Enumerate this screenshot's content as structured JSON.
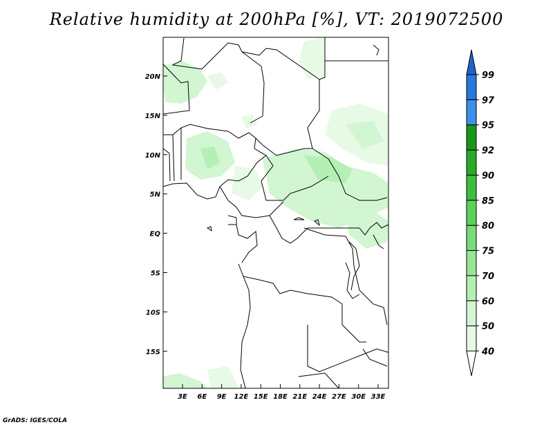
{
  "title": "Relative humidity at 200hPa [%], VT: 2019072500",
  "footer": "GrADS: IGES/COLA",
  "map": {
    "lat_labels": [
      "20N",
      "15N",
      "10N",
      "5N",
      "EQ",
      "5S",
      "10S",
      "15S"
    ],
    "lon_labels": [
      "3E",
      "6E",
      "9E",
      "12E",
      "15E",
      "18E",
      "21E",
      "24E",
      "27E",
      "30E",
      "33E"
    ]
  },
  "colorbar": {
    "levels": [
      "40",
      "50",
      "60",
      "70",
      "75",
      "80",
      "85",
      "90",
      "92",
      "95",
      "97",
      "99"
    ],
    "colors": [
      "#e6fae6",
      "#d2f5d2",
      "#b4f0b4",
      "#96e696",
      "#78dc78",
      "#5ad25a",
      "#3cbe3c",
      "#28aa28",
      "#199619",
      "#3c91e6",
      "#2878dc",
      "#1e64c8"
    ]
  }
}
